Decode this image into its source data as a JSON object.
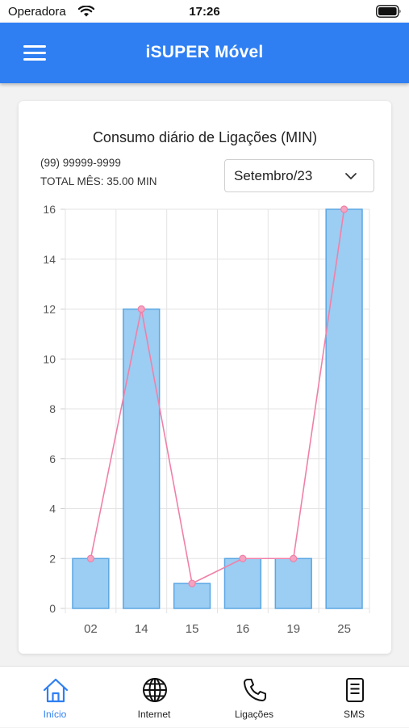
{
  "status": {
    "carrier": "Operadora",
    "time": "17:26",
    "icons": [
      "wifi-icon",
      "battery-icon"
    ]
  },
  "header": {
    "title": "iSUPER Móvel",
    "icon": "menu-icon"
  },
  "card": {
    "phone": "(99) 99999-9999",
    "total": "TOTAL MÊS: 35.00 MIN",
    "month_select": {
      "value": "Setembro/23",
      "icon": "chevron-down-icon"
    }
  },
  "colors": {
    "accent": "#2f7ff2",
    "bar_fill": "#9ccdf2",
    "bar_stroke": "#5ba7e3",
    "line": "#f080a8",
    "grid": "#e3e3e3"
  },
  "chart_data": {
    "type": "bar",
    "title": "Consumo diário de Ligações (MIN)",
    "categories": [
      "02",
      "14",
      "15",
      "16",
      "19",
      "25"
    ],
    "values": [
      2,
      12,
      1,
      2,
      2,
      16
    ],
    "overlay_line": true,
    "ylim": [
      0,
      16
    ],
    "yticks": [
      "0",
      "2",
      "4",
      "6",
      "8",
      "10",
      "12",
      "14",
      "16"
    ],
    "grid": true,
    "legend": "none"
  },
  "tabs": [
    {
      "label": "Início",
      "icon": "home-icon",
      "active": true
    },
    {
      "label": "Internet",
      "icon": "globe-icon",
      "active": false
    },
    {
      "label": "Ligações",
      "icon": "phone-icon",
      "active": false
    },
    {
      "label": "SMS",
      "icon": "sms-icon",
      "active": false
    }
  ]
}
